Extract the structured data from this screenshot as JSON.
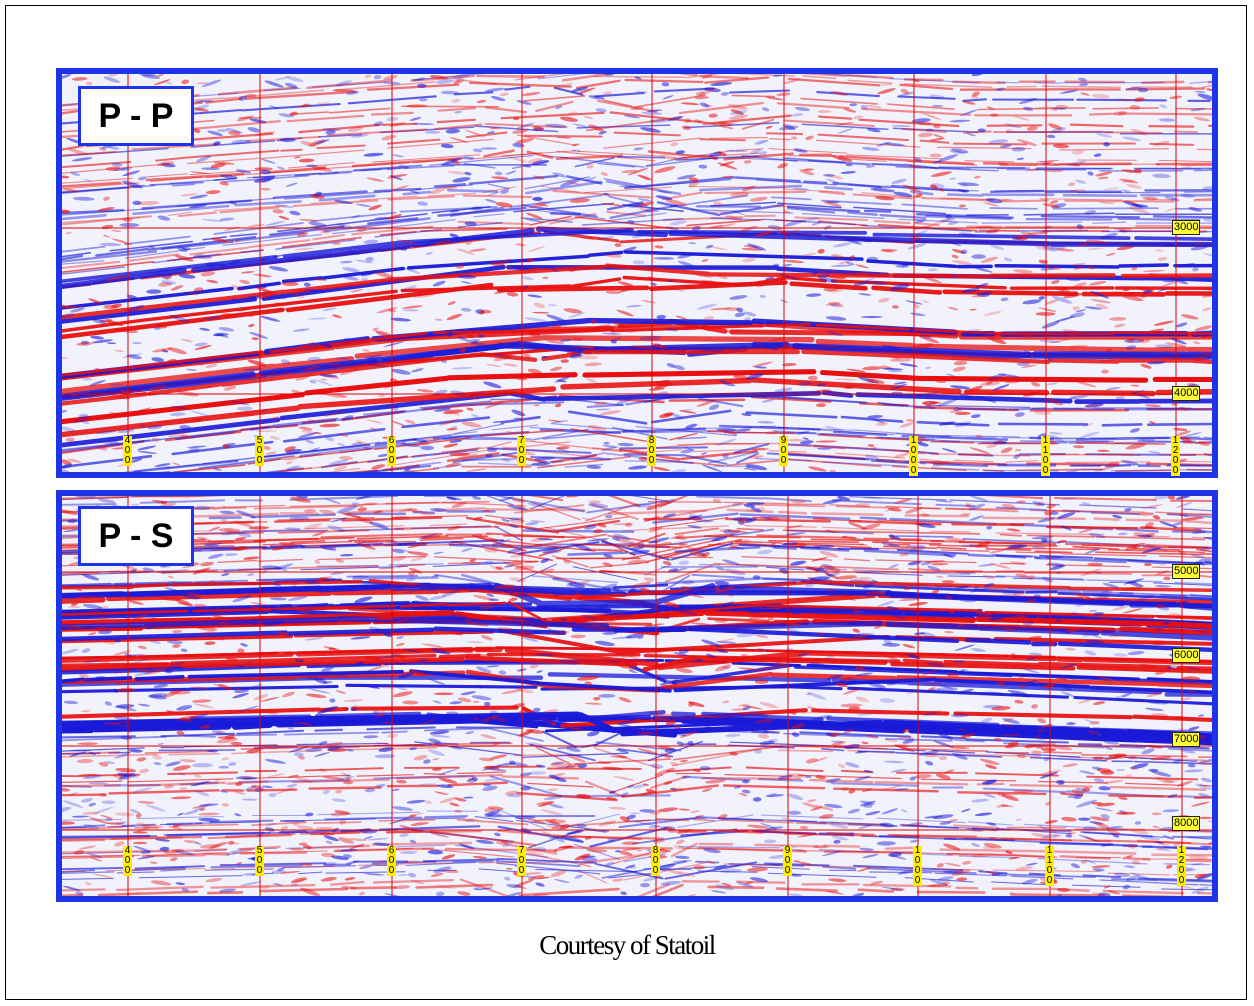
{
  "panels": [
    {
      "id": "pp",
      "badge": "P - P",
      "time_labels": [
        "3000",
        "4000"
      ],
      "trace_labels": [
        "400",
        "500",
        "600",
        "700",
        "800",
        "900",
        "1000",
        "1100",
        "1200"
      ]
    },
    {
      "id": "ps",
      "badge": "P - S",
      "time_labels": [
        "5000",
        "6000",
        "7000",
        "8000"
      ],
      "trace_labels": [
        "400",
        "500",
        "600",
        "700",
        "800",
        "900",
        "1000",
        "1100",
        "1200"
      ]
    }
  ],
  "credit": "Courtesy of Statoil",
  "colors": {
    "border": "#1d35e6",
    "peak": "#e81010",
    "trough": "#1a1ad8",
    "grid": "#e00000",
    "label_bg": "#ffff33"
  }
}
